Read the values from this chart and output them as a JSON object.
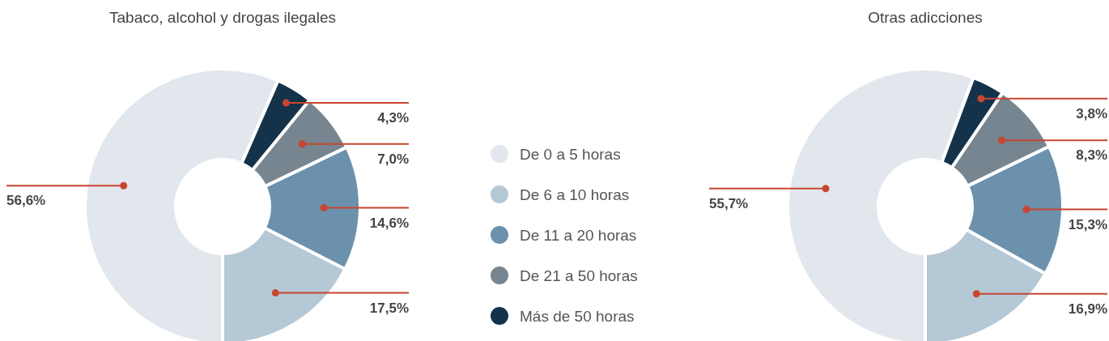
{
  "chart_data": [
    {
      "type": "donut",
      "title": "Tabaco, alcohol y drogas ilegales",
      "categories": [
        "De 0 a 5 horas",
        "De 6 a 10 horas",
        "De 11 a 20 horas",
        "De 21 a 50 horas",
        "Más de 50 horas"
      ],
      "values": [
        56.6,
        17.5,
        14.6,
        7.0,
        4.3
      ],
      "value_labels": [
        "56,6%",
        "17,5%",
        "14,6%",
        "7,0%",
        "4,3%"
      ],
      "colors": [
        "#e1e7ec",
        "#b5c8d5",
        "#6b91ad",
        "#76858f",
        "#14324a"
      ],
      "legend": "right"
    },
    {
      "type": "donut",
      "title": "Otras adicciones",
      "values": [
        55.7,
        16.9,
        15.3,
        8.3,
        3.8
      ],
      "value_labels": [
        "55,7%",
        "16,9%",
        "15,3%",
        "8,3%",
        "3,8%"
      ],
      "colors": [
        "#e1e7ec",
        "#b5c8d5",
        "#6b91ad",
        "#76858f",
        "#14324a"
      ]
    }
  ]
}
